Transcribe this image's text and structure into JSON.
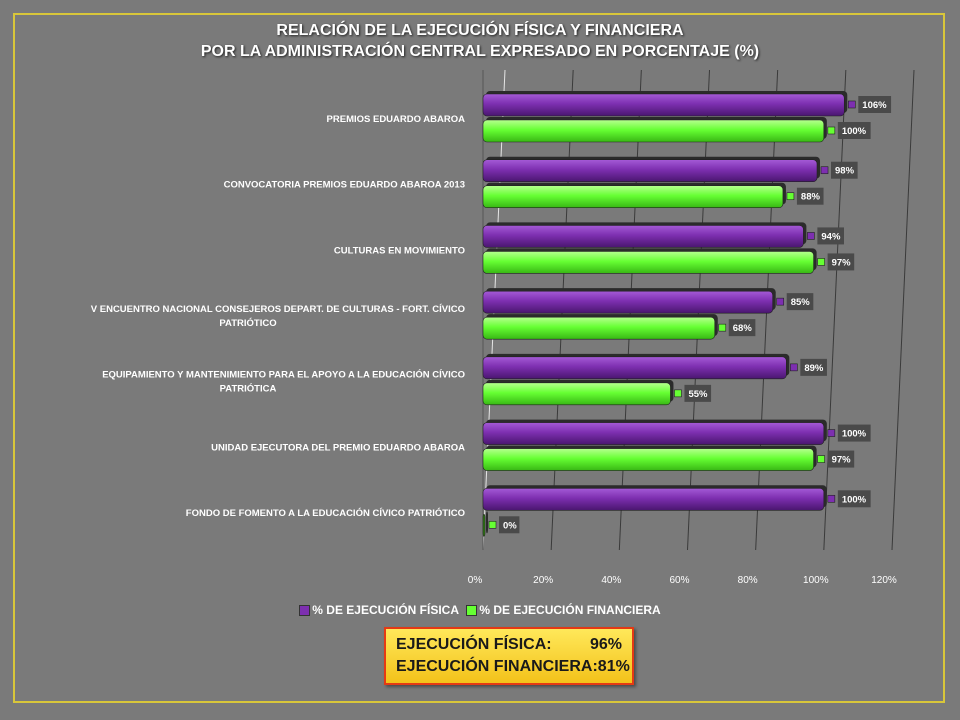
{
  "title_lines": [
    "RELACIÓN DE LA EJECUCIÓN FÍSICA Y FINANCIERA",
    "POR LA ADMINISTRACIÓN CENTRAL EXPRESADO EN PORCENTAJE (%)"
  ],
  "chart_data": {
    "type": "bar",
    "orientation": "horizontal",
    "categories": [
      [
        "PREMIOS EDUARDO ABAROA"
      ],
      [
        "CONVOCATORIA PREMIOS EDUARDO ABAROA 2013"
      ],
      [
        "CULTURAS EN MOVIMIENTO"
      ],
      [
        "V ENCUENTRO NACIONAL CONSEJEROS DEPART. DE CULTURAS - FORT. CÍVICO",
        "PATRIÓTICO"
      ],
      [
        "EQUIPAMIENTO Y MANTENIMIENTO PARA EL APOYO A LA EDUCACIÓN CÍVICO",
        "PATRIÓTICA"
      ],
      [
        "UNIDAD EJECUTORA DEL PREMIO EDUARDO ABAROA"
      ],
      [
        "FONDO DE FOMENTO A LA EDUCACIÓN CÍVICO PATRIÓTICO"
      ]
    ],
    "series": [
      {
        "name": "% DE EJECUCIÓN FÍSICA",
        "color": "#7d2fb0",
        "values": [
          106,
          98,
          94,
          85,
          89,
          100,
          100
        ],
        "labels": [
          "106%",
          "98%",
          "94%",
          "85%",
          "89%",
          "100%",
          "100%"
        ]
      },
      {
        "name": "% DE EJECUCIÓN FINANCIERA",
        "color": "#66ff33",
        "values": [
          100,
          88,
          97,
          68,
          55,
          97,
          0
        ],
        "labels": [
          "100%",
          "88%",
          "97%",
          "68%",
          "55%",
          "97%",
          "0%"
        ]
      }
    ],
    "xlim": [
      0,
      120
    ],
    "ticks": [
      0,
      20,
      40,
      60,
      80,
      100,
      120
    ],
    "tick_labels": [
      "0%",
      "20%",
      "40%",
      "60%",
      "80%",
      "100%",
      "120%"
    ],
    "grid": true,
    "legend": "bottom"
  },
  "summary": {
    "fisica_label": "EJECUCIÓN FÍSICA:",
    "fisica_value": "96%",
    "financiera_label": "EJECUCIÓN FINANCIERA:",
    "financiera_value": "81%"
  },
  "colors": {
    "background": "#7a7a7a",
    "frame": "#d8c63a",
    "summary_border": "#e43a14"
  }
}
